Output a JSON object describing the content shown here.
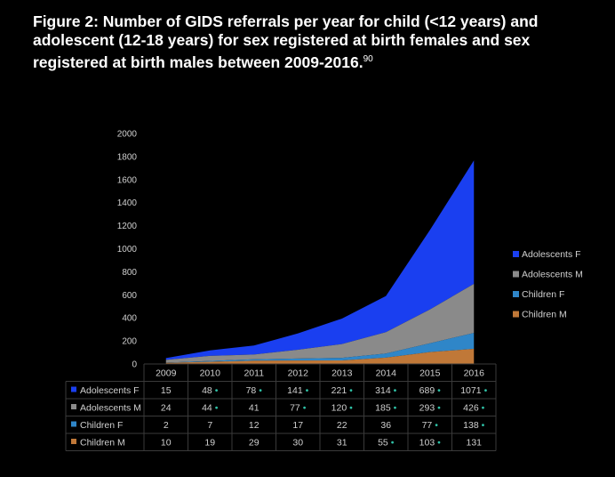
{
  "figure": {
    "title": "Figure 2: Number of GIDS referrals per year for child (<12 years) and adolescent (12-18 years) for sex registered at birth females and sex registered at birth males between 2009-2016.",
    "title_ref": "90"
  },
  "chart_data": {
    "type": "area",
    "stacked": true,
    "categories": [
      "2009",
      "2010",
      "2011",
      "2012",
      "2013",
      "2014",
      "2015",
      "2016"
    ],
    "yticks": [
      0,
      200,
      400,
      600,
      800,
      1000,
      1200,
      1400,
      1600,
      1800,
      2000
    ],
    "ylim": [
      0,
      2000
    ],
    "grid": false,
    "legend_position": "right",
    "series": [
      {
        "name": "Adolescents F",
        "color": "#1a3ff0",
        "values": [
          15,
          48,
          78,
          141,
          221,
          314,
          689,
          1071
        ]
      },
      {
        "name": "Adolescents M",
        "color": "#8a8a8a",
        "values": [
          24,
          44,
          41,
          77,
          120,
          185,
          293,
          426
        ]
      },
      {
        "name": "Children F",
        "color": "#2f86c8",
        "values": [
          2,
          7,
          12,
          17,
          22,
          36,
          77,
          138
        ]
      },
      {
        "name": "Children M",
        "color": "#c07838",
        "values": [
          10,
          19,
          29,
          30,
          31,
          55,
          103,
          131
        ]
      }
    ],
    "table_rows": [
      {
        "label": "Adolescents F",
        "color": "#1a3ff0",
        "cells": [
          "15",
          "48 •",
          "78 •",
          "141 •",
          "221 •",
          "314 •",
          "689 •",
          "1071 •"
        ]
      },
      {
        "label": "Adolescents M",
        "color": "#8a8a8a",
        "cells": [
          "24",
          "44 •",
          "41",
          "77 •",
          "120 •",
          "185 •",
          "293 •",
          "426 •"
        ]
      },
      {
        "label": "Children F",
        "color": "#2f86c8",
        "cells": [
          "2",
          "7",
          "12",
          "17",
          "22",
          "36",
          "77 •",
          "138 •"
        ]
      },
      {
        "label": "Children M",
        "color": "#c07838",
        "cells": [
          "10",
          "19",
          "29",
          "30",
          "31",
          "55 •",
          "103 •",
          "131"
        ]
      }
    ]
  }
}
